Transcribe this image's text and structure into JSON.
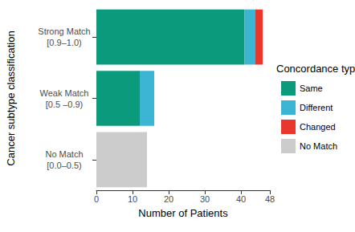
{
  "chart_data": {
    "type": "bar",
    "orientation": "horizontal",
    "stacked": true,
    "grid": false,
    "legend": "right",
    "legend_title": "Concordance type",
    "x_label": "Number of Patients",
    "y_label": "Cancer subtype classification",
    "categories": [
      "Strong Match\n[0.9–1.0)",
      "Weak Match\n[0.5 –0.9)",
      "No Match\n[0.0–0.5)"
    ],
    "series": [
      {
        "name": "Same",
        "color": "#0b9b7c",
        "values": [
          41,
          12,
          null
        ]
      },
      {
        "name": "Different",
        "color": "#3cb5d4",
        "values": [
          3,
          4,
          null
        ]
      },
      {
        "name": "Changed",
        "color": "#e8372d",
        "values": [
          2,
          null,
          null
        ]
      },
      {
        "name": "No Match",
        "color": "#cccccc",
        "values": [
          null,
          null,
          14
        ]
      }
    ],
    "xlim": [
      0,
      48
    ],
    "xticks": [
      0,
      10,
      20,
      30,
      40
    ]
  }
}
